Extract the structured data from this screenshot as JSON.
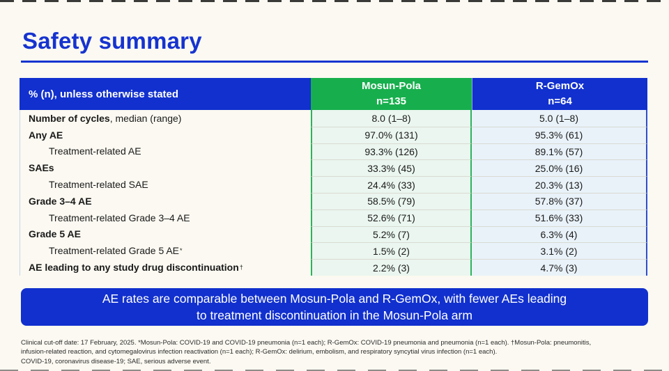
{
  "page": {
    "title": "Safety summary",
    "background_color": "#FBF9F1",
    "accent_blue": "#1130CE",
    "accent_green": "#17AF4D",
    "light_green_column": "#EAF6EF",
    "light_blue_column": "#E9F2F9"
  },
  "table": {
    "header": {
      "label_col": "% (n), unless otherwise stated",
      "mosun_name": "Mosun-Pola",
      "mosun_n": "n=135",
      "rgemox_name": "R-GemOx",
      "rgemox_n": "n=64"
    },
    "rows": [
      {
        "bold_text": "Number of cycles",
        "plain_text": ", median (range)",
        "sup": "",
        "indent": false,
        "mosun": "8.0 (1–8)",
        "rgemox": "5.0 (1–8)"
      },
      {
        "bold_text": "Any AE",
        "plain_text": "",
        "sup": "",
        "indent": false,
        "mosun": "97.0% (131)",
        "rgemox": "95.3% (61)"
      },
      {
        "bold_text": "",
        "plain_text": "Treatment-related AE",
        "sup": "",
        "indent": true,
        "mosun": "93.3% (126)",
        "rgemox": "89.1% (57)"
      },
      {
        "bold_text": "SAEs",
        "plain_text": "",
        "sup": "",
        "indent": false,
        "mosun": "33.3% (45)",
        "rgemox": "25.0% (16)"
      },
      {
        "bold_text": "",
        "plain_text": "Treatment-related SAE",
        "sup": "",
        "indent": true,
        "mosun": "24.4% (33)",
        "rgemox": "20.3% (13)"
      },
      {
        "bold_text": "Grade 3–4 AE",
        "plain_text": "",
        "sup": "",
        "indent": false,
        "mosun": "58.5% (79)",
        "rgemox": "57.8% (37)"
      },
      {
        "bold_text": "",
        "plain_text": "Treatment-related Grade 3–4 AE",
        "sup": "",
        "indent": true,
        "mosun": "52.6% (71)",
        "rgemox": "51.6% (33)"
      },
      {
        "bold_text": "Grade 5 AE",
        "plain_text": "",
        "sup": "",
        "indent": false,
        "mosun": "5.2% (7)",
        "rgemox": "6.3% (4)"
      },
      {
        "bold_text": "",
        "plain_text": "Treatment-related Grade 5 AE",
        "sup": "*",
        "indent": true,
        "mosun": "1.5% (2)",
        "rgemox": "3.1% (2)"
      },
      {
        "bold_text": "AE leading to any study drug discontinuation",
        "plain_text": "",
        "sup": "†",
        "indent": false,
        "mosun": "2.2% (3)",
        "rgemox": "4.7% (3)"
      }
    ]
  },
  "banner": {
    "line1": "AE rates are comparable between Mosun-Pola and R-GemOx, with fewer AEs leading",
    "line2": "to treatment discontinuation in the Mosun-Pola arm"
  },
  "footnotes": {
    "line1": "Clinical cut-off date: 17 February, 2025. *Mosun-Pola: COVID-19 and COVID-19 pneumonia (n=1 each); R-GemOx: COVID-19 pneumonia and pneumonia (n=1 each). †Mosun-Pola: pneumonitis,",
    "line2": "infusion-related reaction, and cytomegalovirus infection reactivation (n=1 each); R-GemOx: delirium, embolism, and respiratory syncytial virus infection (n=1 each).",
    "line3": "COVID-19, coronavirus disease-19; SAE, serious adverse event."
  }
}
